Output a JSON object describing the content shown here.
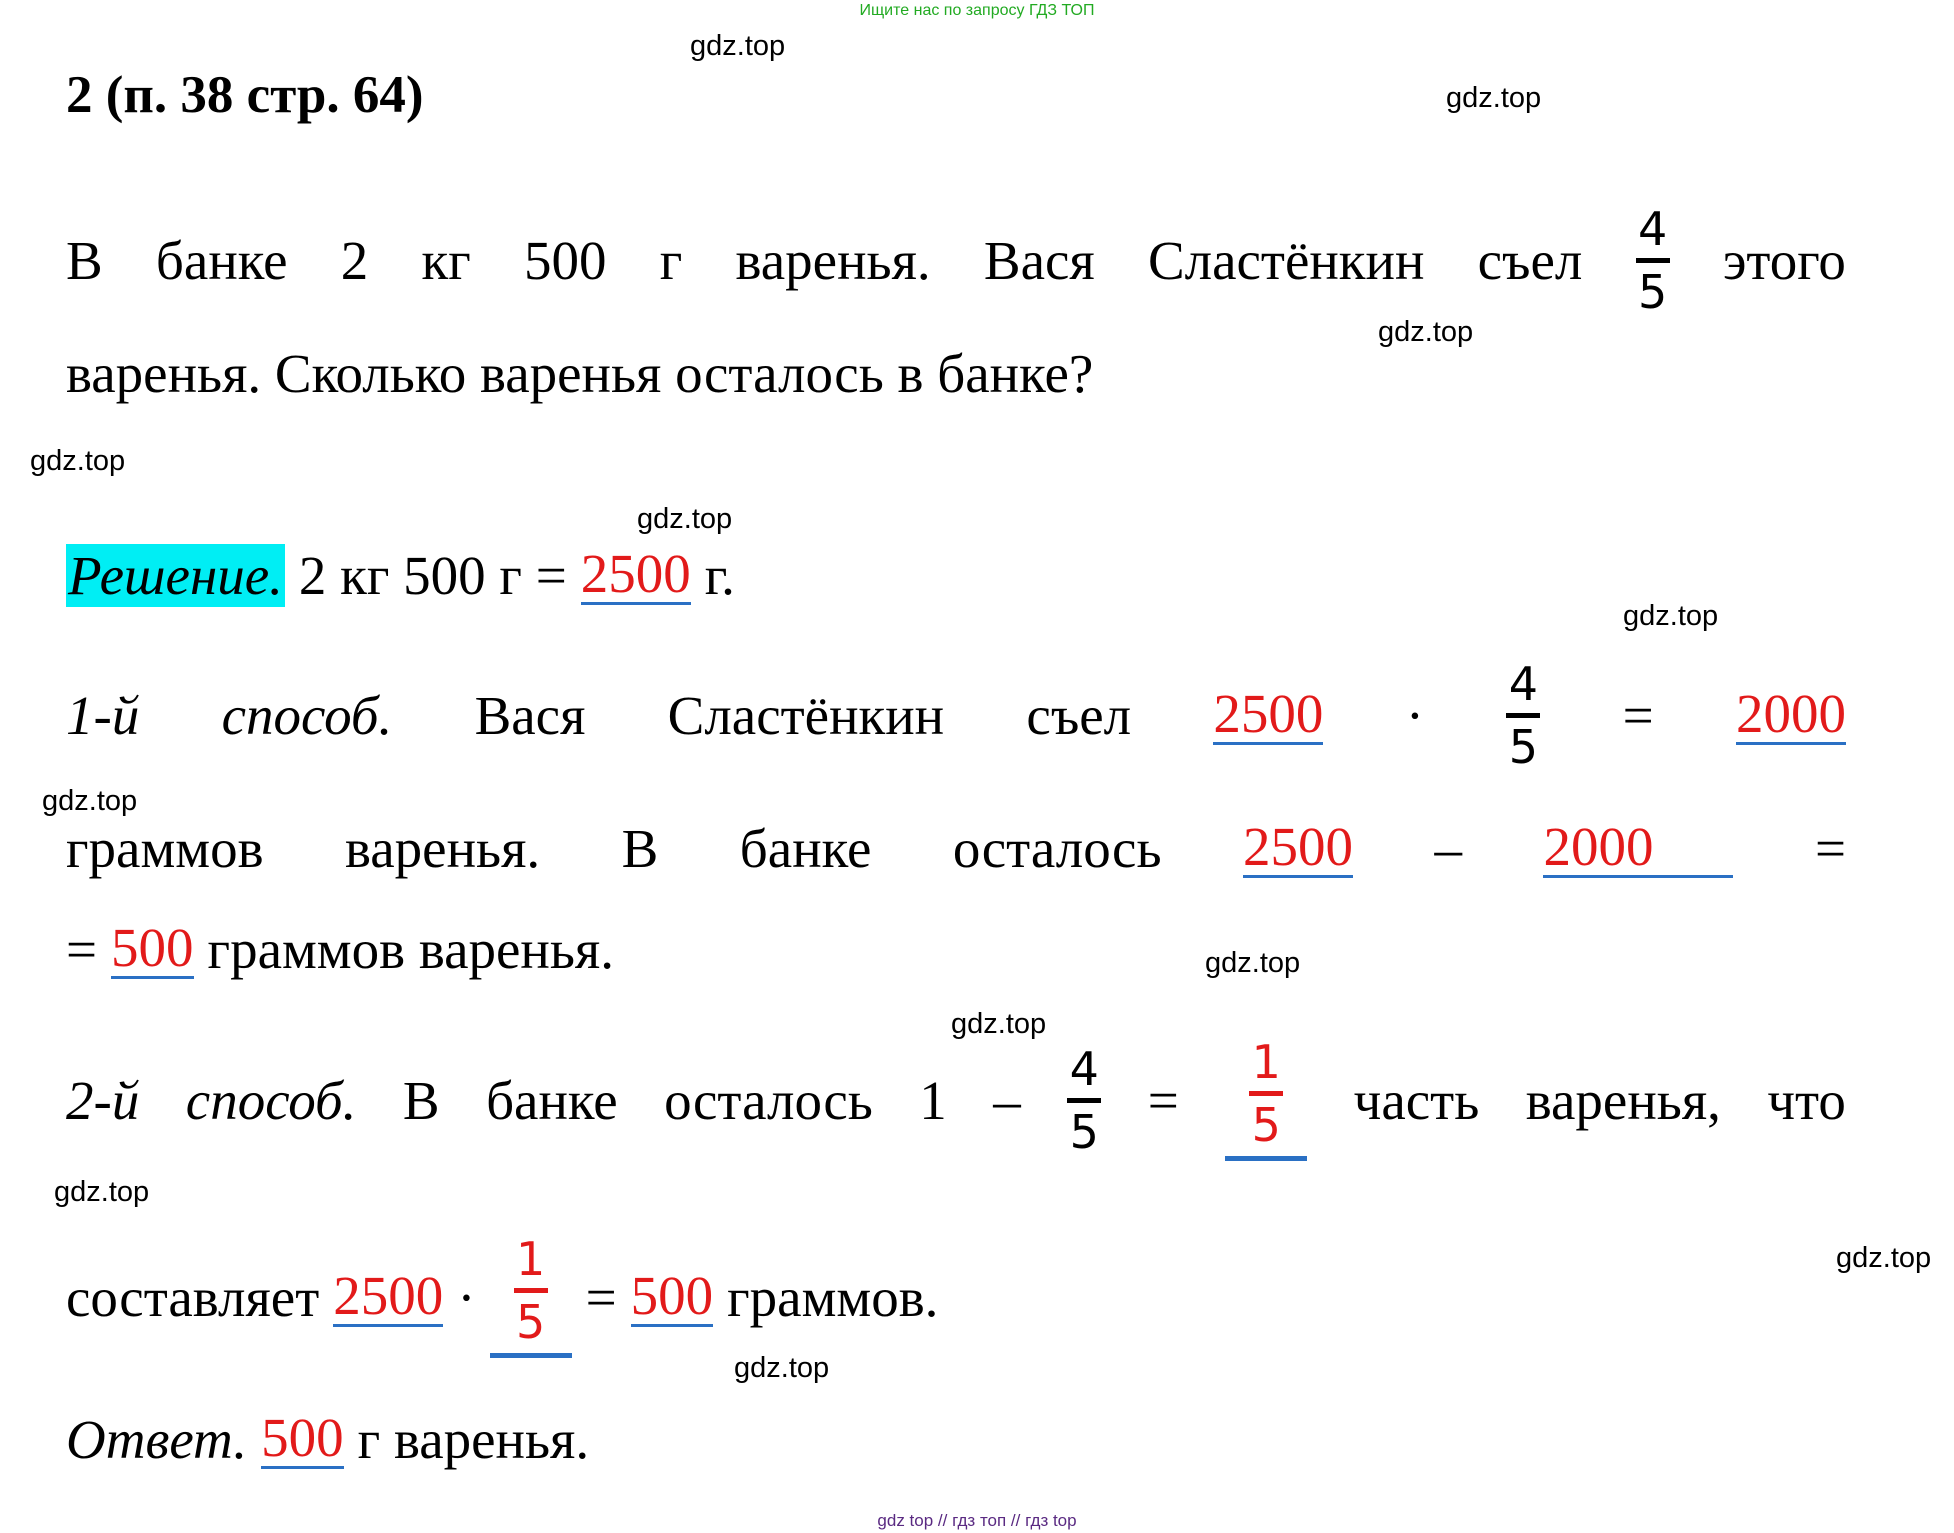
{
  "banner": "Ищите нас по запросу ГДЗ ТОП",
  "watermark": "gdz.top",
  "title": "2 (п. 38 стр. 64)",
  "problem": {
    "line1": [
      "В",
      "банке",
      "2",
      "кг",
      "500",
      "г",
      "варенья.",
      "Вася",
      "Сластёнкин",
      "съел"
    ],
    "frac_num": "4",
    "frac_den": "5",
    "line1_end": "этого",
    "line2": "варенья. Сколько варенья осталось в банке?"
  },
  "solution": {
    "label": "Решение.",
    "conv_prefix": "2 кг 500 г =",
    "conv_value": "2500",
    "conv_unit": "г."
  },
  "method1": {
    "label1": "1-й",
    "label2": "способ.",
    "w1": "Вася",
    "w2": "Сластёнкин",
    "w3": "съел",
    "a": "2500",
    "dot": "·",
    "frac_num": "4",
    "frac_den": "5",
    "eq": "=",
    "result": "2000",
    "l2_words": [
      "граммов",
      "варенья.",
      "В",
      "банке",
      "осталось"
    ],
    "l2_a": "2500",
    "l2_minus": "–",
    "l2_b": "2000",
    "l2_eq": "=",
    "l3_eq": "=",
    "l3_result": "500",
    "l3_tail": "граммов варенья."
  },
  "method2": {
    "label1": "2-й",
    "label2": "способ.",
    "words": [
      "В",
      "банке",
      "осталось"
    ],
    "one": "1",
    "minus": "–",
    "frac_num": "4",
    "frac_den": "5",
    "eq": "=",
    "res_num": "1",
    "res_den": "5",
    "tail": [
      "часть",
      "варенья,",
      "что"
    ],
    "l2_word": "составляет",
    "l2_a": "2500",
    "l2_dot": "·",
    "l2_num": "1",
    "l2_den": "5",
    "l2_eq": "=",
    "l2_result": "500",
    "l2_tail": "граммов."
  },
  "answer": {
    "label": "Ответ.",
    "value": "500",
    "tail": "г варенья."
  },
  "footer": "gdz top  //  гдз топ  //  гдз top",
  "colors": {
    "answer": "#e21a1a",
    "underline": "#2a70c4",
    "highlight": "#00eef4",
    "banner": "#22aa22"
  }
}
